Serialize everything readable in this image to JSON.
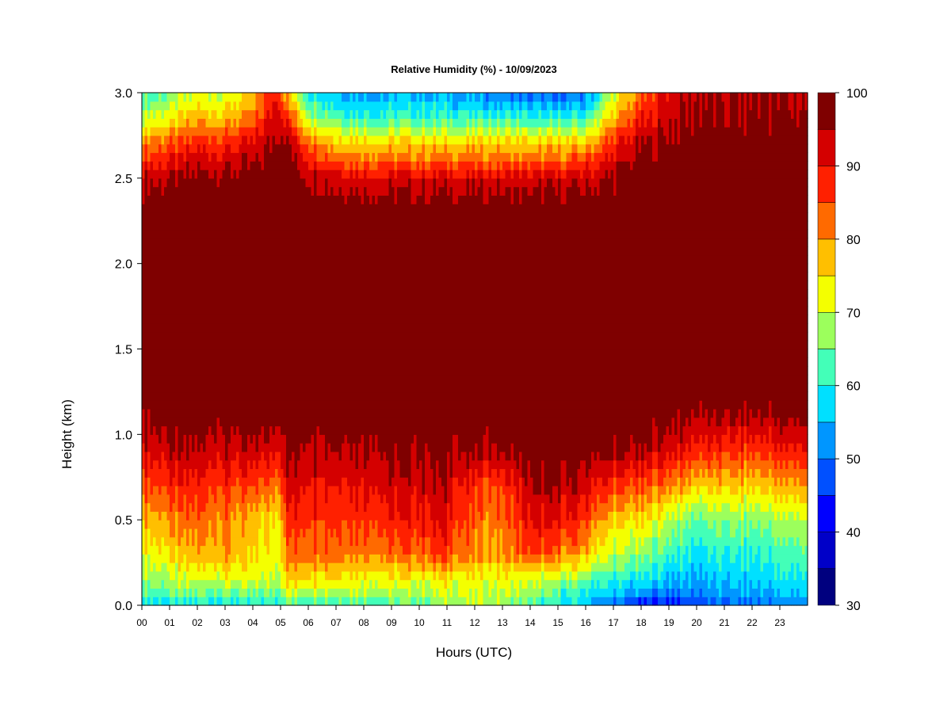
{
  "chart_data": {
    "type": "heatmap",
    "title": "Relative Humidity (%) - 10/09/2023",
    "xlabel": "Hours (UTC)",
    "ylabel": "Height (km)",
    "xlim": [
      0,
      24
    ],
    "ylim": [
      0,
      3
    ],
    "x_ticks": [
      "00",
      "01",
      "02",
      "03",
      "04",
      "05",
      "06",
      "07",
      "08",
      "09",
      "10",
      "11",
      "12",
      "13",
      "14",
      "15",
      "16",
      "17",
      "18",
      "19",
      "20",
      "21",
      "22",
      "23"
    ],
    "y_ticks": [
      "0.0",
      "0.5",
      "1.0",
      "1.5",
      "2.0",
      "2.5",
      "3.0"
    ],
    "colorbar": {
      "levels": [
        30,
        35,
        40,
        45,
        50,
        55,
        60,
        65,
        70,
        75,
        80,
        85,
        90,
        95,
        100
      ],
      "tick_labels": [
        "30",
        "40",
        "50",
        "60",
        "70",
        "80",
        "90",
        "100"
      ],
      "colors": [
        "#00007f",
        "#0000c8",
        "#0000ff",
        "#0050ff",
        "#0096ff",
        "#00e0ff",
        "#43ffb8",
        "#9cff5c",
        "#f4ff00",
        "#ffbf00",
        "#ff6a00",
        "#ff2000",
        "#d40000",
        "#7f0000"
      ]
    },
    "profile_heights_km": [
      0.0,
      0.05,
      0.15,
      0.3,
      0.5,
      0.7,
      0.9,
      1.1,
      1.3,
      2.3,
      2.5,
      2.7,
      2.85,
      3.0
    ],
    "profiles": [
      {
        "hour": 0.0,
        "rh": [
          58,
          63,
          68,
          73,
          78,
          85,
          92,
          97,
          100,
          100,
          94,
          82,
          70,
          62
        ]
      },
      {
        "hour": 1.0,
        "rh": [
          57,
          62,
          68,
          74,
          80,
          87,
          93,
          98,
          100,
          100,
          95,
          84,
          73,
          65
        ]
      },
      {
        "hour": 2.0,
        "rh": [
          58,
          63,
          70,
          78,
          83,
          88,
          94,
          98,
          100,
          100,
          97,
          88,
          78,
          70
        ]
      },
      {
        "hour": 3.0,
        "rh": [
          58,
          64,
          72,
          80,
          82,
          87,
          93,
          98,
          100,
          100,
          97,
          88,
          78,
          70
        ]
      },
      {
        "hour": 4.0,
        "rh": [
          58,
          62,
          70,
          74,
          76,
          84,
          92,
          98,
          100,
          100,
          98,
          90,
          82,
          75
        ]
      },
      {
        "hour": 4.9,
        "rh": [
          60,
          64,
          70,
          73,
          75,
          83,
          92,
          98,
          100,
          100,
          100,
          98,
          94,
          92
        ]
      },
      {
        "hour": 5.2,
        "rh": [
          62,
          68,
          76,
          82,
          87,
          92,
          96,
          99,
          100,
          100,
          100,
          97,
          88,
          78
        ]
      },
      {
        "hour": 6.0,
        "rh": [
          62,
          68,
          76,
          84,
          88,
          92,
          96,
          99,
          100,
          100,
          96,
          85,
          70,
          60
        ]
      },
      {
        "hour": 7.0,
        "rh": [
          62,
          68,
          75,
          84,
          87,
          91,
          96,
          99,
          100,
          100,
          93,
          78,
          64,
          56
        ]
      },
      {
        "hour": 8.0,
        "rh": [
          62,
          68,
          74,
          82,
          88,
          92,
          96,
          99,
          100,
          100,
          92,
          76,
          62,
          54
        ]
      },
      {
        "hour": 9.0,
        "rh": [
          62,
          66,
          72,
          82,
          88,
          92,
          96,
          99,
          100,
          100,
          92,
          76,
          62,
          54
        ]
      },
      {
        "hour": 10.0,
        "rh": [
          64,
          68,
          72,
          84,
          90,
          93,
          97,
          99,
          100,
          100,
          92,
          76,
          62,
          54
        ]
      },
      {
        "hour": 11.0,
        "rh": [
          66,
          70,
          74,
          86,
          91,
          94,
          97,
          99,
          100,
          100,
          92,
          76,
          62,
          53
        ]
      },
      {
        "hour": 12.0,
        "rh": [
          68,
          70,
          72,
          80,
          82,
          86,
          95,
          99,
          100,
          100,
          92,
          76,
          62,
          52
        ]
      },
      {
        "hour": 13.0,
        "rh": [
          66,
          70,
          72,
          80,
          82,
          86,
          96,
          100,
          100,
          100,
          92,
          76,
          62,
          50
        ]
      },
      {
        "hour": 14.0,
        "rh": [
          62,
          66,
          70,
          86,
          90,
          94,
          98,
          100,
          100,
          100,
          92,
          76,
          60,
          48
        ]
      },
      {
        "hour": 15.0,
        "rh": [
          58,
          62,
          68,
          82,
          90,
          95,
          99,
          100,
          100,
          100,
          92,
          76,
          60,
          46
        ]
      },
      {
        "hour": 16.0,
        "rh": [
          54,
          58,
          64,
          78,
          86,
          92,
          98,
          100,
          100,
          100,
          93,
          78,
          62,
          50
        ]
      },
      {
        "hour": 17.0,
        "rh": [
          48,
          54,
          60,
          68,
          76,
          86,
          96,
          100,
          100,
          100,
          96,
          88,
          78,
          70
        ]
      },
      {
        "hour": 18.0,
        "rh": [
          40,
          50,
          58,
          66,
          74,
          84,
          94,
          99,
          100,
          100,
          99,
          95,
          88,
          82
        ]
      },
      {
        "hour": 19.0,
        "rh": [
          42,
          50,
          56,
          62,
          70,
          82,
          92,
          98,
          100,
          100,
          100,
          97,
          94,
          92
        ]
      },
      {
        "hour": 20.0,
        "rh": [
          46,
          50,
          54,
          58,
          64,
          76,
          88,
          95,
          100,
          100,
          100,
          98,
          96,
          95
        ]
      },
      {
        "hour": 21.0,
        "rh": [
          48,
          52,
          56,
          60,
          66,
          76,
          86,
          95,
          100,
          100,
          100,
          98,
          96,
          95
        ]
      },
      {
        "hour": 22.0,
        "rh": [
          48,
          52,
          56,
          60,
          66,
          76,
          86,
          95,
          100,
          100,
          100,
          98,
          96,
          95
        ]
      },
      {
        "hour": 23.0,
        "rh": [
          50,
          54,
          58,
          62,
          68,
          78,
          88,
          96,
          100,
          100,
          100,
          98,
          96,
          95
        ]
      },
      {
        "hour": 24.0,
        "rh": [
          52,
          56,
          60,
          64,
          70,
          80,
          90,
          97,
          100,
          100,
          100,
          98,
          96,
          95
        ]
      }
    ]
  }
}
